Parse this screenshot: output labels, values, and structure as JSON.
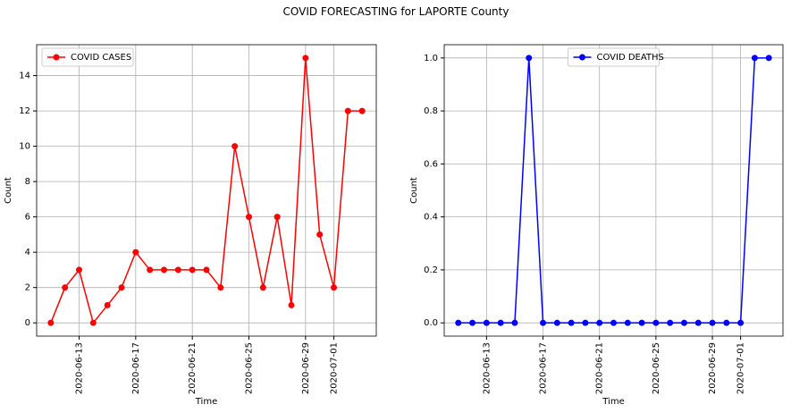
{
  "title": "COVID FORECASTING for LAPORTE County",
  "chart_data": [
    {
      "type": "line",
      "xlabel": "Time",
      "ylabel": "Count",
      "grid": true,
      "legend": "upper left",
      "x": [
        "2020-06-11",
        "2020-06-12",
        "2020-06-13",
        "2020-06-14",
        "2020-06-15",
        "2020-06-16",
        "2020-06-17",
        "2020-06-18",
        "2020-06-19",
        "2020-06-20",
        "2020-06-21",
        "2020-06-22",
        "2020-06-23",
        "2020-06-24",
        "2020-06-25",
        "2020-06-26",
        "2020-06-27",
        "2020-06-28",
        "2020-06-29",
        "2020-06-30",
        "2020-07-01",
        "2020-07-02",
        "2020-07-03"
      ],
      "series": [
        {
          "name": "COVID CASES",
          "color": "#ff0000",
          "values": [
            0,
            2,
            3,
            0,
            1,
            2,
            4,
            3,
            3,
            3,
            3,
            3,
            2,
            10,
            6,
            2,
            6,
            1,
            15,
            5,
            2,
            12,
            12
          ]
        }
      ],
      "xlim": [
        "2020-06-10",
        "2020-07-04"
      ],
      "xticks": [
        "2020-06-13",
        "2020-06-17",
        "2020-06-21",
        "2020-06-25",
        "2020-06-29",
        "2020-07-01"
      ],
      "ylim": [
        -0.75,
        15.75
      ],
      "yticks": [
        0,
        2,
        4,
        6,
        8,
        10,
        12,
        14
      ]
    },
    {
      "type": "line",
      "xlabel": "Time",
      "ylabel": "Count",
      "grid": true,
      "legend": "upper center",
      "x": [
        "2020-06-11",
        "2020-06-12",
        "2020-06-13",
        "2020-06-14",
        "2020-06-15",
        "2020-06-16",
        "2020-06-17",
        "2020-06-18",
        "2020-06-19",
        "2020-06-20",
        "2020-06-21",
        "2020-06-22",
        "2020-06-23",
        "2020-06-24",
        "2020-06-25",
        "2020-06-26",
        "2020-06-27",
        "2020-06-28",
        "2020-06-29",
        "2020-06-30",
        "2020-07-01",
        "2020-07-02",
        "2020-07-03"
      ],
      "series": [
        {
          "name": "COVID DEATHS",
          "color": "#0000ff",
          "values": [
            0,
            0,
            0,
            0,
            0,
            1,
            0,
            0,
            0,
            0,
            0,
            0,
            0,
            0,
            0,
            0,
            0,
            0,
            0,
            0,
            0,
            1,
            1
          ]
        }
      ],
      "xlim": [
        "2020-06-10",
        "2020-07-04"
      ],
      "xticks": [
        "2020-06-13",
        "2020-06-17",
        "2020-06-21",
        "2020-06-25",
        "2020-06-29",
        "2020-07-01"
      ],
      "ylim": [
        -0.05,
        1.05
      ],
      "yticks": [
        {
          "value": 0,
          "label": "0.0"
        },
        {
          "value": 0.2,
          "label": "0.2"
        },
        {
          "value": 0.4,
          "label": "0.4"
        },
        {
          "value": 0.6,
          "label": "0.6"
        },
        {
          "value": 0.8,
          "label": "0.8"
        },
        {
          "value": 1,
          "label": "1.0"
        }
      ]
    }
  ]
}
